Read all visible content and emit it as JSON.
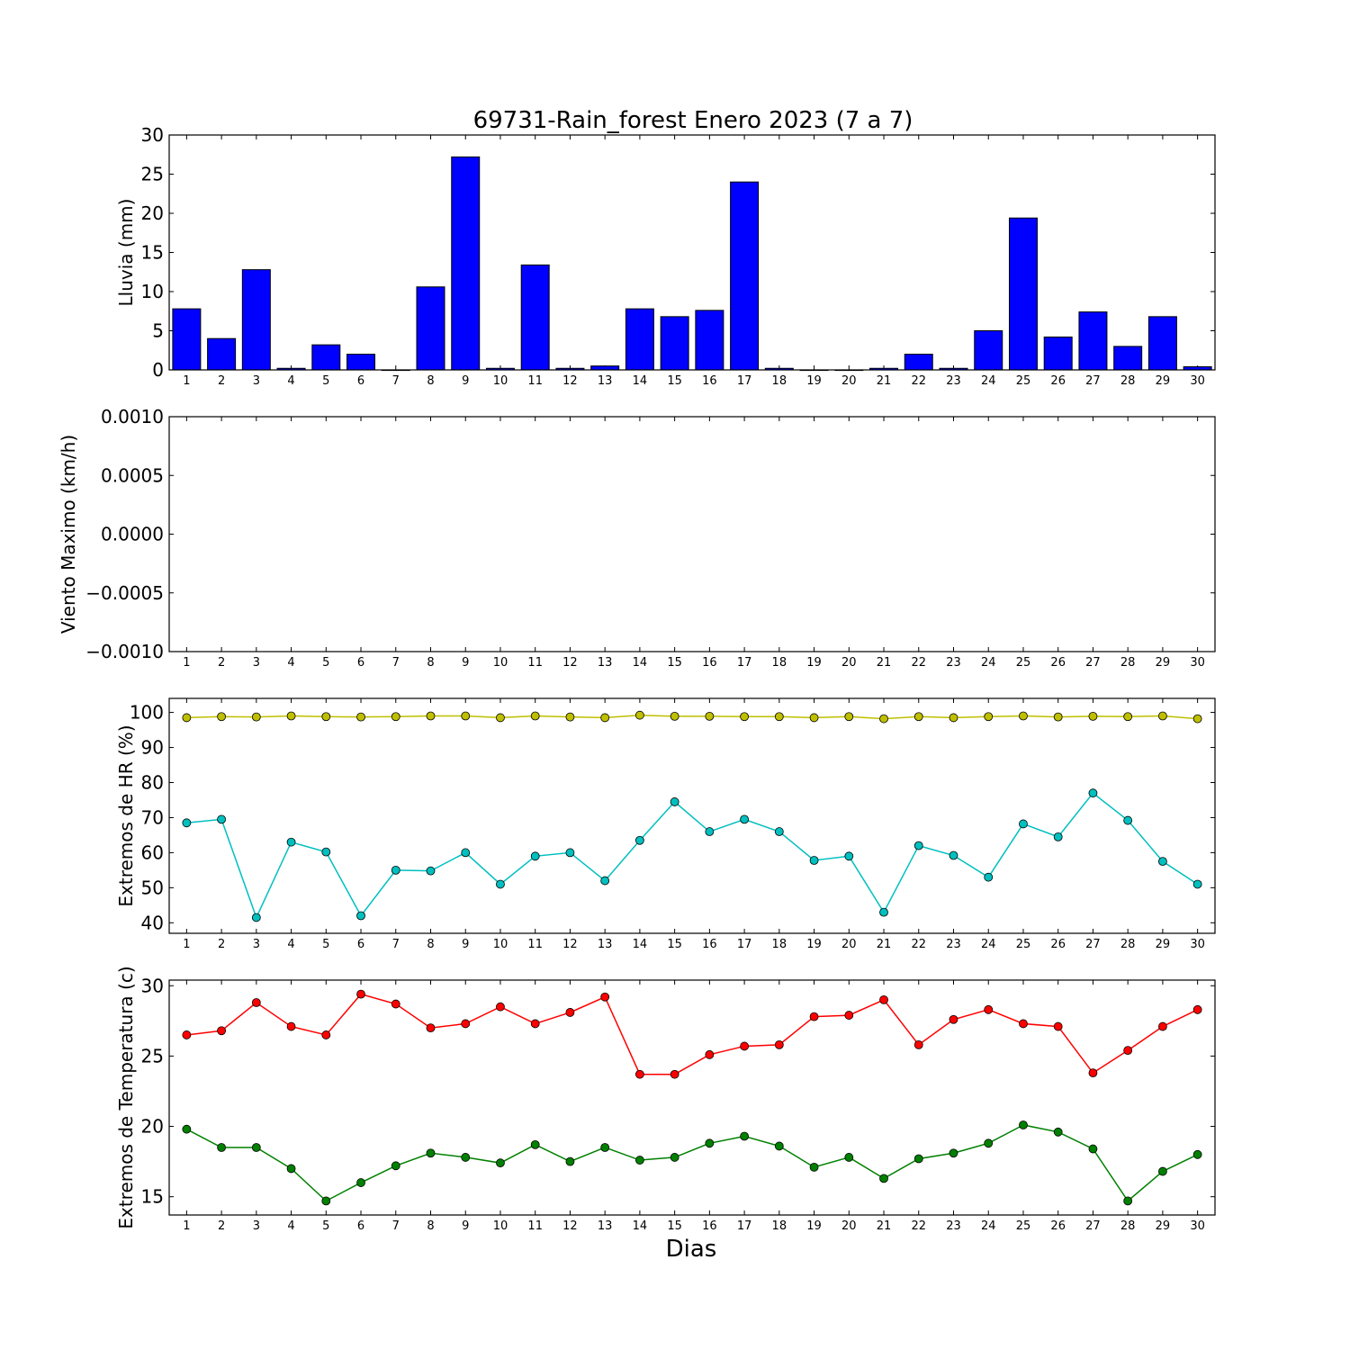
{
  "figure": {
    "title": "69731-Rain_forest Enero 2023  (7 a 7)",
    "xlabel": "Dias"
  },
  "chart_data": [
    {
      "type": "bar",
      "ylabel": "Lluvia (mm)",
      "ylim": [
        0,
        30
      ],
      "yticks": [
        0,
        5,
        10,
        15,
        20,
        25,
        30
      ],
      "ytick_labels": [
        "0",
        "5",
        "10",
        "15",
        "20",
        "25",
        "30"
      ],
      "categories": [
        "1",
        "2",
        "3",
        "4",
        "5",
        "6",
        "7",
        "8",
        "9",
        "10",
        "11",
        "12",
        "13",
        "14",
        "15",
        "16",
        "17",
        "18",
        "19",
        "20",
        "21",
        "22",
        "23",
        "24",
        "25",
        "26",
        "27",
        "28",
        "29",
        "30"
      ],
      "series": [
        {
          "color": "#0000ff",
          "values": [
            7.8,
            4.0,
            12.8,
            0.2,
            3.2,
            2.0,
            0.0,
            10.6,
            27.2,
            0.2,
            13.4,
            0.2,
            0.5,
            7.8,
            6.8,
            7.6,
            24.0,
            0.2,
            0.0,
            0.0,
            0.2,
            2.0,
            0.2,
            5.0,
            19.4,
            4.2,
            7.4,
            3.0,
            6.8,
            0.4
          ]
        }
      ]
    },
    {
      "type": "line",
      "ylabel": "Viento Maximo (km/h)",
      "ylim": [
        -0.001,
        0.001
      ],
      "yticks": [
        -0.001,
        -0.0005,
        0,
        0.0005,
        0.001
      ],
      "ytick_labels": [
        "−0.0010",
        "−0.0005",
        "0.0000",
        "0.0005",
        "0.0010"
      ],
      "categories": [
        "1",
        "2",
        "3",
        "4",
        "5",
        "6",
        "7",
        "8",
        "9",
        "10",
        "11",
        "12",
        "13",
        "14",
        "15",
        "16",
        "17",
        "18",
        "19",
        "20",
        "21",
        "22",
        "23",
        "24",
        "25",
        "26",
        "27",
        "28",
        "29",
        "30"
      ],
      "series": []
    },
    {
      "type": "line",
      "ylabel": "Extremos de HR (%)",
      "ylim": [
        37,
        104
      ],
      "yticks": [
        40,
        50,
        60,
        70,
        80,
        90,
        100
      ],
      "ytick_labels": [
        "40",
        "50",
        "60",
        "70",
        "80",
        "90",
        "100"
      ],
      "categories": [
        "1",
        "2",
        "3",
        "4",
        "5",
        "6",
        "7",
        "8",
        "9",
        "10",
        "11",
        "12",
        "13",
        "14",
        "15",
        "16",
        "17",
        "18",
        "19",
        "20",
        "21",
        "22",
        "23",
        "24",
        "25",
        "26",
        "27",
        "28",
        "29",
        "30"
      ],
      "series": [
        {
          "color": "#bfbf00",
          "values": [
            98.5,
            98.8,
            98.7,
            99.0,
            98.8,
            98.7,
            98.8,
            99.0,
            99.0,
            98.5,
            99.0,
            98.7,
            98.5,
            99.2,
            98.9,
            98.9,
            98.8,
            98.8,
            98.5,
            98.8,
            98.2,
            98.8,
            98.5,
            98.8,
            99.0,
            98.7,
            98.9,
            98.8,
            99.0,
            98.2
          ]
        },
        {
          "color": "#00bfbf",
          "values": [
            68.5,
            69.5,
            41.5,
            63.0,
            60.2,
            42.0,
            55.0,
            54.8,
            60.0,
            51.0,
            59.0,
            60.0,
            52.0,
            63.5,
            74.5,
            66.0,
            69.5,
            66.0,
            57.8,
            59.0,
            43.0,
            62.0,
            59.2,
            53.0,
            68.2,
            64.5,
            77.0,
            69.2,
            57.5,
            51.0
          ]
        }
      ]
    },
    {
      "type": "line",
      "ylabel": "Extremos de Temperatura (c)",
      "ylim": [
        13.7,
        30.4
      ],
      "yticks": [
        15,
        20,
        25,
        30
      ],
      "ytick_labels": [
        "15",
        "20",
        "25",
        "30"
      ],
      "categories": [
        "1",
        "2",
        "3",
        "4",
        "5",
        "6",
        "7",
        "8",
        "9",
        "10",
        "11",
        "12",
        "13",
        "14",
        "15",
        "16",
        "17",
        "18",
        "19",
        "20",
        "21",
        "22",
        "23",
        "24",
        "25",
        "26",
        "27",
        "28",
        "29",
        "30"
      ],
      "series": [
        {
          "color": "#ff0000",
          "values": [
            26.5,
            26.8,
            28.8,
            27.1,
            26.5,
            29.4,
            28.7,
            27.0,
            27.3,
            28.5,
            27.3,
            28.1,
            29.2,
            23.7,
            23.7,
            25.1,
            25.7,
            25.8,
            27.8,
            27.9,
            29.0,
            25.8,
            27.6,
            28.3,
            27.3,
            27.1,
            23.8,
            25.4,
            27.1,
            28.3
          ]
        },
        {
          "color": "#008000",
          "values": [
            19.8,
            18.5,
            18.5,
            17.0,
            14.7,
            16.0,
            17.2,
            18.1,
            17.8,
            17.4,
            18.7,
            17.5,
            18.5,
            17.6,
            17.8,
            18.8,
            19.3,
            18.6,
            17.1,
            17.8,
            16.3,
            17.7,
            18.1,
            18.8,
            20.1,
            19.6,
            18.4,
            14.7,
            16.8,
            18.0
          ]
        }
      ]
    }
  ]
}
